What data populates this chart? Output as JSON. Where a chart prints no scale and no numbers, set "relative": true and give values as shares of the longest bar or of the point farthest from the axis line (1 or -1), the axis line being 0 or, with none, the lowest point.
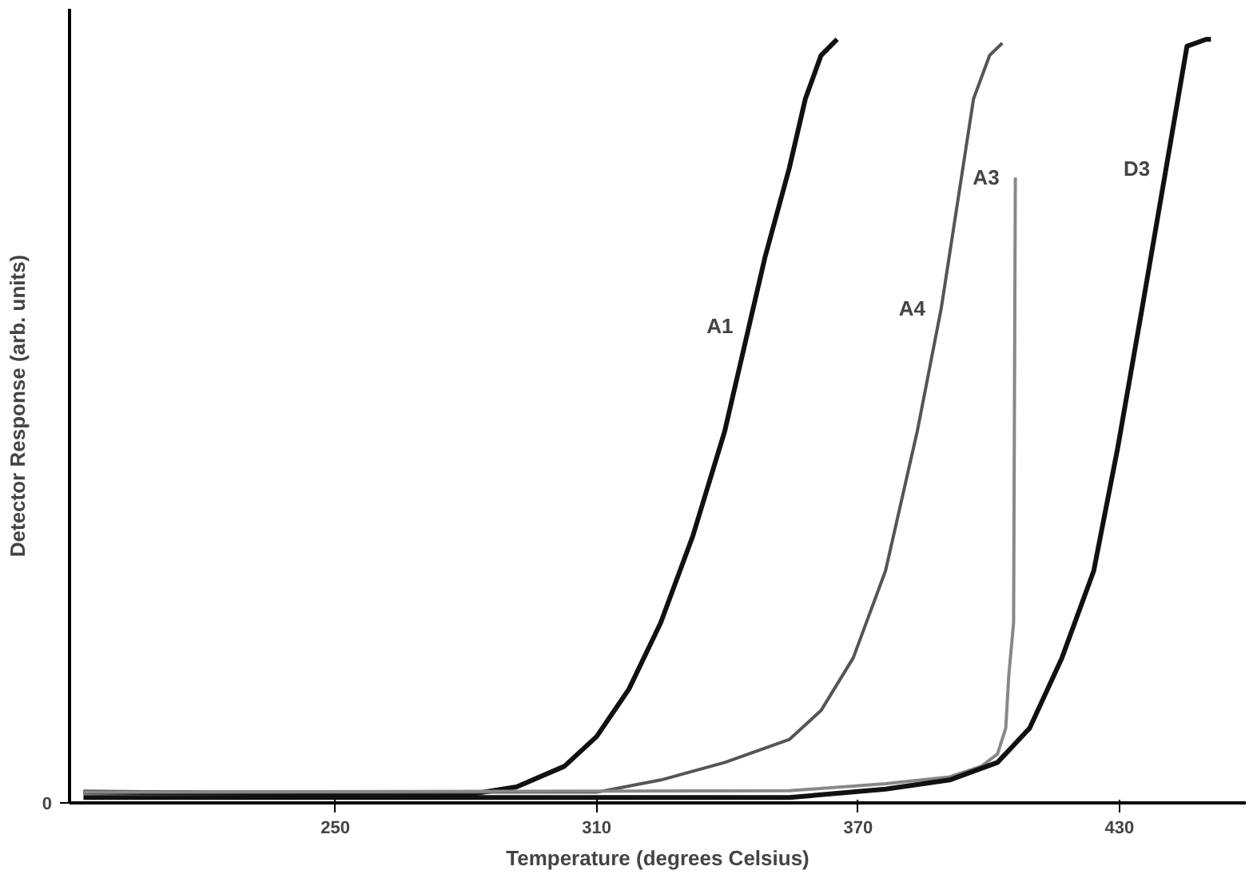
{
  "chart_data": {
    "type": "line",
    "relative": true,
    "xlabel": "Temperature (degrees Celsius)",
    "ylabel": "Detector Response (arb. units)",
    "xlim": [
      189,
      459
    ],
    "xticks": [
      250,
      310,
      370,
      430
    ],
    "annotations": [
      "0"
    ],
    "grid": false,
    "marker": "none",
    "line_style": "solid",
    "series": [
      {
        "name": "A1",
        "color": "#111111",
        "x": [
          192.2,
          280.6,
          291.6,
          302.6,
          310,
          317.4,
          324.7,
          332.1,
          339.4,
          345,
          348.7,
          354.2,
          357.9,
          361.5,
          365.2
        ],
        "values": [
          0.014,
          0.011,
          0.021,
          0.048,
          0.087,
          0.149,
          0.236,
          0.35,
          0.487,
          0.625,
          0.716,
          0.831,
          0.922,
          0.979,
          1.0
        ]
      },
      {
        "name": "A4",
        "color": "#555555",
        "x": [
          192.2,
          310,
          324.7,
          339.4,
          354.2,
          361.5,
          368.9,
          376.3,
          383.6,
          389.1,
          392.8,
          396.5,
          400.2,
          403.1
        ],
        "values": [
          0.014,
          0.014,
          0.03,
          0.053,
          0.083,
          0.121,
          0.19,
          0.304,
          0.487,
          0.648,
          0.785,
          0.922,
          0.979,
          0.995
        ]
      },
      {
        "name": "A3",
        "color": "#888888",
        "x": [
          192.2,
          354.2,
          376.3,
          391,
          398.3,
          402,
          403.9,
          404.6,
          405.7,
          406.1
        ],
        "values": [
          0.014,
          0.016,
          0.025,
          0.034,
          0.048,
          0.064,
          0.098,
          0.167,
          0.236,
          0.819
        ]
      },
      {
        "name": "D3",
        "color": "#111111",
        "x": [
          192.2,
          354.2,
          376.3,
          391,
          402,
          409.4,
          416.8,
          424.1,
          429.6,
          435.2,
          440.7,
          445.5,
          449.9,
          451
        ],
        "values": [
          0.007,
          0.007,
          0.018,
          0.03,
          0.053,
          0.098,
          0.19,
          0.304,
          0.465,
          0.648,
          0.831,
          0.991,
          1.0,
          1.0
        ]
      }
    ]
  }
}
